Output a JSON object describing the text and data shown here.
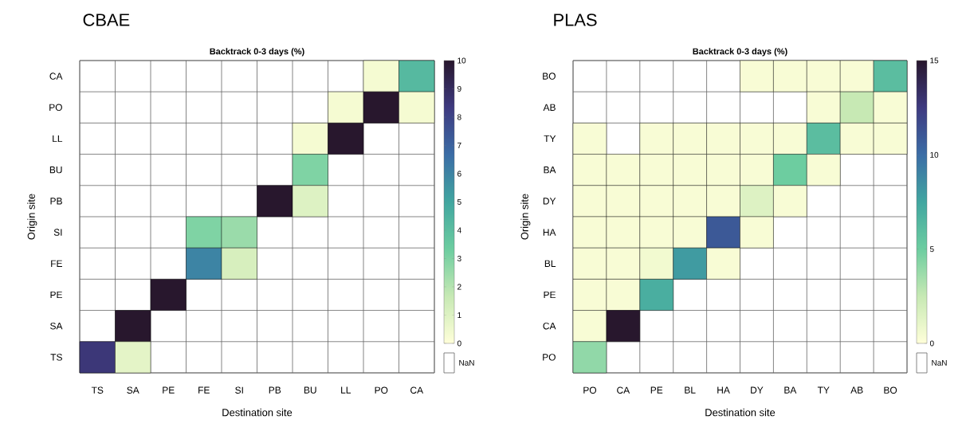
{
  "chart_data": [
    {
      "type": "heatmap",
      "title": "CBAE",
      "subtitle": "Backtrack 0-3 days (%)",
      "xlabel": "Destination site",
      "ylabel": "Origin site",
      "categories": [
        "TS",
        "SA",
        "PE",
        "FE",
        "SI",
        "PB",
        "BU",
        "LL",
        "PO",
        "CA"
      ],
      "y_categories": [
        "CA",
        "PO",
        "LL",
        "BU",
        "PB",
        "SI",
        "FE",
        "PE",
        "SA",
        "TS"
      ],
      "cells": [
        [
          null,
          null,
          null,
          null,
          null,
          null,
          null,
          null,
          0.3,
          4.2
        ],
        [
          null,
          null,
          null,
          null,
          null,
          null,
          null,
          0.3,
          10,
          0.3
        ],
        [
          null,
          null,
          null,
          null,
          null,
          null,
          0.3,
          10,
          null,
          null
        ],
        [
          null,
          null,
          null,
          null,
          null,
          null,
          3,
          null,
          null,
          null
        ],
        [
          null,
          null,
          null,
          null,
          null,
          10,
          1,
          null,
          null,
          null
        ],
        [
          null,
          null,
          null,
          3,
          2.5,
          null,
          null,
          null,
          null,
          null
        ],
        [
          null,
          null,
          null,
          6,
          1.2,
          null,
          null,
          null,
          null,
          null
        ],
        [
          null,
          null,
          10,
          null,
          null,
          null,
          null,
          null,
          null,
          null
        ],
        [
          null,
          10,
          null,
          null,
          null,
          null,
          null,
          null,
          null,
          null
        ],
        [
          8.5,
          0.8,
          null,
          null,
          null,
          null,
          null,
          null,
          null,
          null
        ]
      ],
      "clim": [
        0,
        10
      ],
      "cticks": [
        0,
        1,
        2,
        3,
        4,
        5,
        6,
        7,
        8,
        9,
        10
      ],
      "annotations": [
        "NaN"
      ]
    },
    {
      "type": "heatmap",
      "title": "PLAS",
      "subtitle": "Backtrack 0-3 days (%)",
      "xlabel": "Destination site",
      "ylabel": "Origin site",
      "categories": [
        "PO",
        "CA",
        "PE",
        "BL",
        "HA",
        "DY",
        "BA",
        "TY",
        "AB",
        "BO"
      ],
      "y_categories": [
        "BO",
        "AB",
        "TY",
        "BA",
        "DY",
        "HA",
        "BL",
        "PE",
        "CA",
        "PO"
      ],
      "cells": [
        [
          null,
          null,
          null,
          null,
          null,
          0.3,
          0.3,
          0.3,
          0.3,
          6
        ],
        [
          null,
          null,
          null,
          null,
          null,
          null,
          null,
          0.3,
          2.5,
          0.3
        ],
        [
          0.3,
          null,
          0.3,
          0.3,
          0.3,
          0.3,
          0.3,
          6,
          0.3,
          0.3
        ],
        [
          0.3,
          0.3,
          0.3,
          0.3,
          0.3,
          0.3,
          5,
          0.3,
          null,
          null
        ],
        [
          0.3,
          0.3,
          0.3,
          0.3,
          0.3,
          1.5,
          0.3,
          null,
          null,
          null
        ],
        [
          0.3,
          0.3,
          0.3,
          0.3,
          11,
          0.3,
          null,
          null,
          null,
          null
        ],
        [
          0.3,
          0.3,
          0.6,
          8,
          0.3,
          null,
          null,
          null,
          null,
          null
        ],
        [
          0.3,
          0.3,
          7,
          null,
          null,
          null,
          null,
          null,
          null,
          null
        ],
        [
          0.3,
          15,
          null,
          null,
          null,
          null,
          null,
          null,
          null,
          null
        ],
        [
          4,
          null,
          null,
          null,
          null,
          null,
          null,
          null,
          null,
          null
        ]
      ],
      "clim": [
        0,
        15
      ],
      "cticks": [
        0,
        5,
        10,
        15
      ],
      "annotations": [
        "NaN"
      ]
    }
  ]
}
